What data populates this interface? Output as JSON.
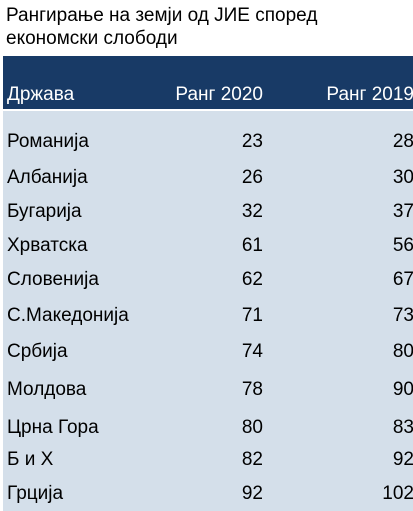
{
  "chart_data": {
    "type": "table",
    "title": "Рангирање на земји од ЈИЕ според економски слободи",
    "columns": [
      "Држава",
      "Ранг 2020",
      "Ранг 2019"
    ],
    "rows": [
      {
        "country": "Романија",
        "rank_2020": 23,
        "rank_2019": 28
      },
      {
        "country": "Албанија",
        "rank_2020": 26,
        "rank_2019": 30
      },
      {
        "country": "Бугарија",
        "rank_2020": 32,
        "rank_2019": 37
      },
      {
        "country": "Хрватска",
        "rank_2020": 61,
        "rank_2019": 56
      },
      {
        "country": "Словенија",
        "rank_2020": 62,
        "rank_2019": 67
      },
      {
        "country": "С.Македонија",
        "rank_2020": 71,
        "rank_2019": 73
      },
      {
        "country": "Србија",
        "rank_2020": 74,
        "rank_2019": 80
      },
      {
        "country": "Молдова",
        "rank_2020": 78,
        "rank_2019": 90
      },
      {
        "country": "Црна Гора",
        "rank_2020": 80,
        "rank_2019": 83
      },
      {
        "country": "Б и Х",
        "rank_2020": 82,
        "rank_2019": 92
      },
      {
        "country": "Грција",
        "rank_2020": 92,
        "rank_2019": 102
      }
    ]
  },
  "colors": {
    "header_bg": "#183a66",
    "header_text": "#ffffff",
    "body_bg": "#d4dfea"
  }
}
